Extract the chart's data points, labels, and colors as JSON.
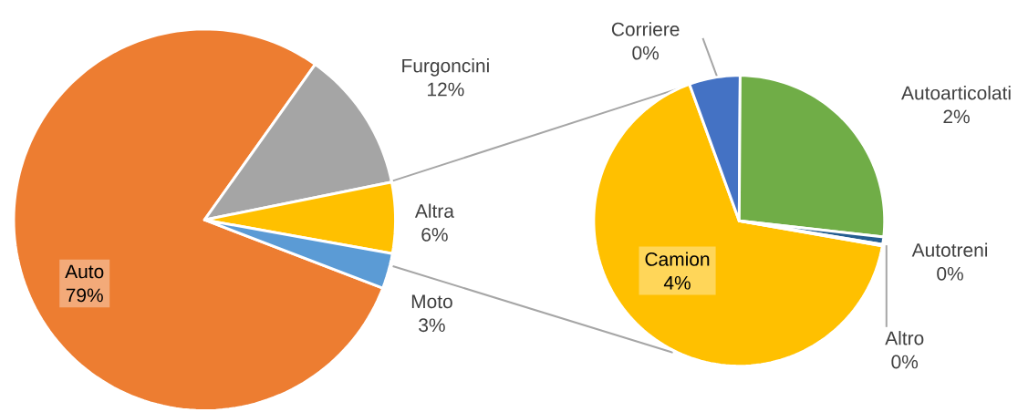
{
  "chart_data": [
    {
      "type": "pie",
      "categories": [
        "Auto",
        "Furgoncini",
        "Altra",
        "Moto"
      ],
      "values": [
        79,
        12,
        6,
        3
      ],
      "colors": [
        "#ed7d31",
        "#a5a5a5",
        "#ffc000",
        "#5b9bd5"
      ],
      "value_labels": [
        "79%",
        "12%",
        "6%",
        "3%"
      ]
    },
    {
      "type": "pie",
      "categories": [
        "Camion",
        "Corriere",
        "Autoarticolati",
        "Autotreni",
        "Altro"
      ],
      "values": [
        4.0,
        0.34,
        1.6,
        0.05,
        0.01
      ],
      "colors": [
        "#ffc000",
        "#4472c4",
        "#70ad47",
        "#255e91",
        "#9e480e"
      ],
      "value_labels": [
        "4%",
        "0%",
        "2%",
        "0%",
        "0%"
      ]
    }
  ]
}
